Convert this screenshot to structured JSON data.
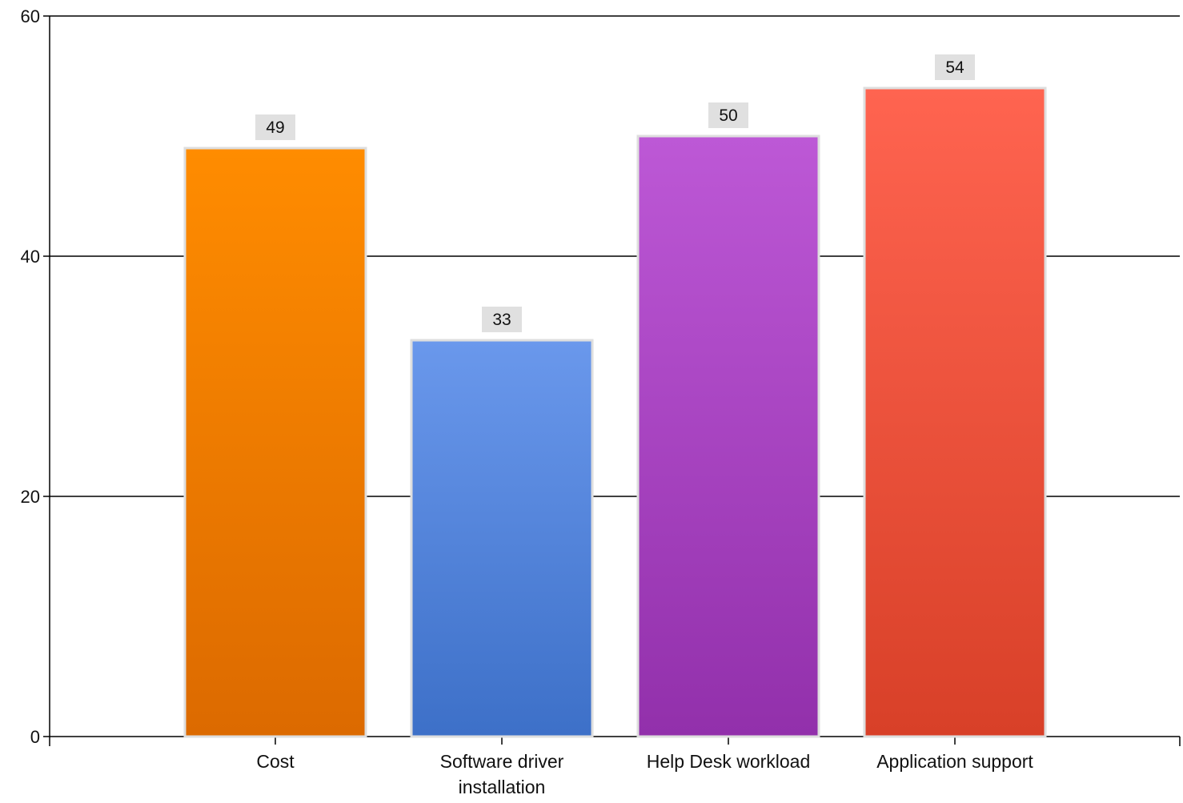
{
  "chart_data": {
    "type": "bar",
    "categories": [
      [
        "Cost"
      ],
      [
        "Software driver",
        "installation"
      ],
      [
        "Help Desk workload"
      ],
      [
        "Application support"
      ]
    ],
    "values": [
      49,
      33,
      50,
      54
    ],
    "data_labels": [
      "49",
      "33",
      "50",
      "54"
    ],
    "bar_colors": [
      {
        "top": "#ff8c00",
        "bottom": "#dc6a00"
      },
      {
        "top": "#6a98ec",
        "bottom": "#3d70c8"
      },
      {
        "top": "#bd58d6",
        "bottom": "#9230ab"
      },
      {
        "top": "#ff6450",
        "bottom": "#d84028"
      }
    ],
    "bar_border_color": "#dedede",
    "label_box_color": "#e0e0e0",
    "gridline_color": "#000000",
    "ylim": [
      0,
      60
    ],
    "yticks": [
      0,
      20,
      40,
      60
    ],
    "grid": true,
    "title": "",
    "xlabel": "",
    "ylabel": ""
  }
}
